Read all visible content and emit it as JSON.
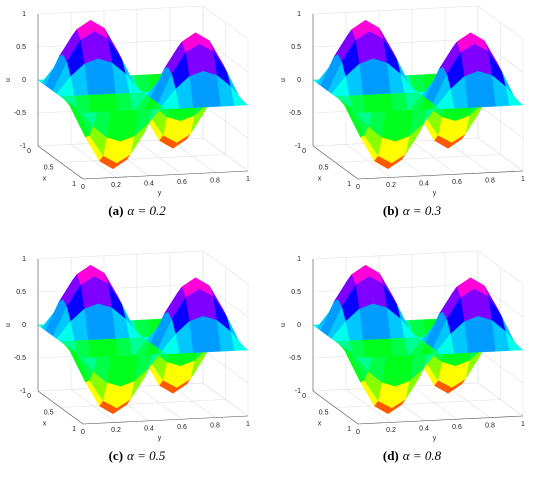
{
  "chart_data": [
    {
      "type": "surface",
      "caption_label": "(a)",
      "caption": "α = 0.2",
      "xlabel": "x",
      "ylabel": "y",
      "zlabel": "u",
      "colormap": "hsv",
      "xlim": [
        0,
        1
      ],
      "ylim": [
        0,
        1
      ],
      "zlim": [
        -1,
        1
      ],
      "xticks": [
        0,
        0.5,
        1
      ],
      "yticks": [
        0,
        0.2,
        0.4,
        0.6,
        0.8,
        1
      ],
      "zticks": [
        -1,
        -0.5,
        0,
        0.5,
        1
      ],
      "grid": true,
      "x": [
        0,
        0.0833,
        0.1667,
        0.25,
        0.3333,
        0.4167,
        0.5,
        0.5833,
        0.6667,
        0.75,
        0.8333,
        0.9167,
        1
      ],
      "y": [
        0,
        0.0833,
        0.1667,
        0.25,
        0.3333,
        0.4167,
        0.5,
        0.5833,
        0.6667,
        0.75,
        0.8333,
        0.9167,
        1
      ],
      "z": [
        [
          0,
          0,
          0,
          0,
          0,
          0,
          0,
          0,
          0,
          0,
          0,
          0,
          0
        ],
        [
          0,
          0.25,
          0.43,
          0.5,
          0.43,
          0.25,
          0,
          -0.25,
          -0.43,
          -0.5,
          -0.43,
          -0.25,
          0
        ],
        [
          0,
          0.43,
          0.75,
          0.87,
          0.75,
          0.43,
          0,
          -0.43,
          -0.75,
          -0.87,
          -0.75,
          -0.43,
          0
        ],
        [
          0,
          0.5,
          0.87,
          1,
          0.87,
          0.5,
          0,
          -0.5,
          -0.87,
          -1,
          -0.87,
          -0.5,
          0
        ],
        [
          0,
          0.43,
          0.75,
          0.87,
          0.75,
          0.43,
          0,
          -0.43,
          -0.75,
          -0.87,
          -0.75,
          -0.43,
          0
        ],
        [
          0,
          0.25,
          0.43,
          0.5,
          0.43,
          0.25,
          0,
          -0.25,
          -0.43,
          -0.5,
          -0.43,
          -0.25,
          0
        ],
        [
          0,
          0,
          0,
          0,
          0,
          0,
          0,
          0,
          0,
          0,
          0,
          0,
          0
        ],
        [
          0,
          -0.25,
          -0.43,
          -0.5,
          -0.43,
          -0.25,
          0,
          0.25,
          0.43,
          0.5,
          0.43,
          0.25,
          0
        ],
        [
          0,
          -0.43,
          -0.75,
          -0.87,
          -0.75,
          -0.43,
          0,
          0.43,
          0.75,
          0.87,
          0.75,
          0.43,
          0
        ],
        [
          0,
          -0.5,
          -0.87,
          -1,
          -0.87,
          -0.5,
          0,
          0.5,
          0.87,
          1,
          0.87,
          0.5,
          0
        ],
        [
          0,
          -0.43,
          -0.75,
          -0.87,
          -0.75,
          -0.43,
          0,
          0.43,
          0.75,
          0.87,
          0.75,
          0.43,
          0
        ],
        [
          0,
          -0.25,
          -0.43,
          -0.5,
          -0.43,
          -0.25,
          0,
          0.25,
          0.43,
          0.5,
          0.43,
          0.25,
          0
        ],
        [
          0,
          0,
          0,
          0,
          0,
          0,
          0,
          0,
          0,
          0,
          0,
          0,
          0
        ]
      ]
    },
    {
      "type": "surface",
      "caption_label": "(b)",
      "caption": "α = 0.3",
      "xlabel": "x",
      "ylabel": "y",
      "zlabel": "u",
      "colormap": "hsv",
      "xlim": [
        0,
        1
      ],
      "ylim": [
        0,
        1
      ],
      "zlim": [
        -1,
        1
      ],
      "xticks": [
        0,
        0.5,
        1
      ],
      "yticks": [
        0,
        0.2,
        0.4,
        0.6,
        0.8,
        1
      ],
      "zticks": [
        -1,
        -0.5,
        0,
        0.5,
        1
      ],
      "grid": true,
      "x": [
        0,
        0.0833,
        0.1667,
        0.25,
        0.3333,
        0.4167,
        0.5,
        0.5833,
        0.6667,
        0.75,
        0.8333,
        0.9167,
        1
      ],
      "y": [
        0,
        0.0833,
        0.1667,
        0.25,
        0.3333,
        0.4167,
        0.5,
        0.5833,
        0.6667,
        0.75,
        0.8333,
        0.9167,
        1
      ],
      "z": [
        [
          0,
          0,
          0,
          0,
          0,
          0,
          0,
          0,
          0,
          0,
          0,
          0,
          0
        ],
        [
          0,
          0.25,
          0.43,
          0.5,
          0.43,
          0.25,
          0,
          -0.25,
          -0.43,
          -0.5,
          -0.43,
          -0.25,
          0
        ],
        [
          0,
          0.43,
          0.75,
          0.87,
          0.75,
          0.43,
          0,
          -0.43,
          -0.75,
          -0.87,
          -0.75,
          -0.43,
          0
        ],
        [
          0,
          0.5,
          0.87,
          1,
          0.87,
          0.5,
          0,
          -0.5,
          -0.87,
          -1,
          -0.87,
          -0.5,
          0
        ],
        [
          0,
          0.43,
          0.75,
          0.87,
          0.75,
          0.43,
          0,
          -0.43,
          -0.75,
          -0.87,
          -0.75,
          -0.43,
          0
        ],
        [
          0,
          0.25,
          0.43,
          0.5,
          0.43,
          0.25,
          0,
          -0.25,
          -0.43,
          -0.5,
          -0.43,
          -0.25,
          0
        ],
        [
          0,
          0,
          0,
          0,
          0,
          0,
          0,
          0,
          0,
          0,
          0,
          0,
          0
        ],
        [
          0,
          -0.25,
          -0.43,
          -0.5,
          -0.43,
          -0.25,
          0,
          0.25,
          0.43,
          0.5,
          0.43,
          0.25,
          0
        ],
        [
          0,
          -0.43,
          -0.75,
          -0.87,
          -0.75,
          -0.43,
          0,
          0.43,
          0.75,
          0.87,
          0.75,
          0.43,
          0
        ],
        [
          0,
          -0.5,
          -0.87,
          -1,
          -0.87,
          -0.5,
          0,
          0.5,
          0.87,
          1,
          0.87,
          0.5,
          0
        ],
        [
          0,
          -0.43,
          -0.75,
          -0.87,
          -0.75,
          -0.43,
          0,
          0.43,
          0.75,
          0.87,
          0.75,
          0.43,
          0
        ],
        [
          0,
          -0.25,
          -0.43,
          -0.5,
          -0.43,
          -0.25,
          0,
          0.25,
          0.43,
          0.5,
          0.43,
          0.25,
          0
        ],
        [
          0,
          0,
          0,
          0,
          0,
          0,
          0,
          0,
          0,
          0,
          0,
          0,
          0
        ]
      ]
    },
    {
      "type": "surface",
      "caption_label": "(c)",
      "caption": "α = 0.5",
      "xlabel": "x",
      "ylabel": "y",
      "zlabel": "u",
      "colormap": "hsv",
      "xlim": [
        0,
        1
      ],
      "ylim": [
        0,
        1
      ],
      "zlim": [
        -1,
        1
      ],
      "xticks": [
        0,
        0.5,
        1
      ],
      "yticks": [
        0,
        0.2,
        0.4,
        0.6,
        0.8,
        1
      ],
      "zticks": [
        -1,
        -0.5,
        0,
        0.5,
        1
      ],
      "grid": true,
      "x": [
        0,
        0.0833,
        0.1667,
        0.25,
        0.3333,
        0.4167,
        0.5,
        0.5833,
        0.6667,
        0.75,
        0.8333,
        0.9167,
        1
      ],
      "y": [
        0,
        0.0833,
        0.1667,
        0.25,
        0.3333,
        0.4167,
        0.5,
        0.5833,
        0.6667,
        0.75,
        0.8333,
        0.9167,
        1
      ],
      "z": [
        [
          0,
          0,
          0,
          0,
          0,
          0,
          0,
          0,
          0,
          0,
          0,
          0,
          0
        ],
        [
          0,
          0.25,
          0.43,
          0.5,
          0.43,
          0.25,
          0,
          -0.25,
          -0.43,
          -0.5,
          -0.43,
          -0.25,
          0
        ],
        [
          0,
          0.43,
          0.75,
          0.87,
          0.75,
          0.43,
          0,
          -0.43,
          -0.75,
          -0.87,
          -0.75,
          -0.43,
          0
        ],
        [
          0,
          0.5,
          0.87,
          1,
          0.87,
          0.5,
          0,
          -0.5,
          -0.87,
          -1,
          -0.87,
          -0.5,
          0
        ],
        [
          0,
          0.43,
          0.75,
          0.87,
          0.75,
          0.43,
          0,
          -0.43,
          -0.75,
          -0.87,
          -0.75,
          -0.43,
          0
        ],
        [
          0,
          0.25,
          0.43,
          0.5,
          0.43,
          0.25,
          0,
          -0.25,
          -0.43,
          -0.5,
          -0.43,
          -0.25,
          0
        ],
        [
          0,
          0,
          0,
          0,
          0,
          0,
          0,
          0,
          0,
          0,
          0,
          0,
          0
        ],
        [
          0,
          -0.25,
          -0.43,
          -0.5,
          -0.43,
          -0.25,
          0,
          0.25,
          0.43,
          0.5,
          0.43,
          0.25,
          0
        ],
        [
          0,
          -0.43,
          -0.75,
          -0.87,
          -0.75,
          -0.43,
          0,
          0.43,
          0.75,
          0.87,
          0.75,
          0.43,
          0
        ],
        [
          0,
          -0.5,
          -0.87,
          -1,
          -0.87,
          -0.5,
          0,
          0.5,
          0.87,
          1,
          0.87,
          0.5,
          0
        ],
        [
          0,
          -0.43,
          -0.75,
          -0.87,
          -0.75,
          -0.43,
          0,
          0.43,
          0.75,
          0.87,
          0.75,
          0.43,
          0
        ],
        [
          0,
          -0.25,
          -0.43,
          -0.5,
          -0.43,
          -0.25,
          0,
          0.25,
          0.43,
          0.5,
          0.43,
          0.25,
          0
        ],
        [
          0,
          0,
          0,
          0,
          0,
          0,
          0,
          0,
          0,
          0,
          0,
          0,
          0
        ]
      ]
    },
    {
      "type": "surface",
      "caption_label": "(d)",
      "caption": "α = 0.8",
      "xlabel": "x",
      "ylabel": "y",
      "zlabel": "u",
      "colormap": "hsv",
      "xlim": [
        0,
        1
      ],
      "ylim": [
        0,
        1
      ],
      "zlim": [
        -1,
        1
      ],
      "xticks": [
        0,
        0.5,
        1
      ],
      "yticks": [
        0,
        0.2,
        0.4,
        0.6,
        0.8,
        1
      ],
      "zticks": [
        -1,
        -0.5,
        0,
        0.5,
        1
      ],
      "grid": true,
      "x": [
        0,
        0.0833,
        0.1667,
        0.25,
        0.3333,
        0.4167,
        0.5,
        0.5833,
        0.6667,
        0.75,
        0.8333,
        0.9167,
        1
      ],
      "y": [
        0,
        0.0833,
        0.1667,
        0.25,
        0.3333,
        0.4167,
        0.5,
        0.5833,
        0.6667,
        0.75,
        0.8333,
        0.9167,
        1
      ],
      "z": [
        [
          0,
          0,
          0,
          0,
          0,
          0,
          0,
          0,
          0,
          0,
          0,
          0,
          0
        ],
        [
          0,
          0.25,
          0.43,
          0.5,
          0.43,
          0.25,
          0,
          -0.25,
          -0.43,
          -0.5,
          -0.43,
          -0.25,
          0
        ],
        [
          0,
          0.43,
          0.75,
          0.87,
          0.75,
          0.43,
          0,
          -0.43,
          -0.75,
          -0.87,
          -0.75,
          -0.43,
          0
        ],
        [
          0,
          0.5,
          0.87,
          1,
          0.87,
          0.5,
          0,
          -0.5,
          -0.87,
          -1,
          -0.87,
          -0.5,
          0
        ],
        [
          0,
          0.43,
          0.75,
          0.87,
          0.75,
          0.43,
          0,
          -0.43,
          -0.75,
          -0.87,
          -0.75,
          -0.43,
          0
        ],
        [
          0,
          0.25,
          0.43,
          0.5,
          0.43,
          0.25,
          0,
          -0.25,
          -0.43,
          -0.5,
          -0.43,
          -0.25,
          0
        ],
        [
          0,
          0,
          0,
          0,
          0,
          0,
          0,
          0,
          0,
          0,
          0,
          0,
          0
        ],
        [
          0,
          -0.25,
          -0.43,
          -0.5,
          -0.43,
          -0.25,
          0,
          0.25,
          0.43,
          0.5,
          0.43,
          0.25,
          0
        ],
        [
          0,
          -0.43,
          -0.75,
          -0.87,
          -0.75,
          -0.43,
          0,
          0.43,
          0.75,
          0.87,
          0.75,
          0.43,
          0
        ],
        [
          0,
          -0.5,
          -0.87,
          -1,
          -0.87,
          -0.5,
          0,
          0.5,
          0.87,
          1,
          0.87,
          0.5,
          0
        ],
        [
          0,
          -0.43,
          -0.75,
          -0.87,
          -0.75,
          -0.43,
          0,
          0.43,
          0.75,
          0.87,
          0.75,
          0.43,
          0
        ],
        [
          0,
          -0.25,
          -0.43,
          -0.5,
          -0.43,
          -0.25,
          0,
          0.25,
          0.43,
          0.5,
          0.43,
          0.25,
          0
        ],
        [
          0,
          0,
          0,
          0,
          0,
          0,
          0,
          0,
          0,
          0,
          0,
          0,
          0
        ]
      ]
    }
  ]
}
